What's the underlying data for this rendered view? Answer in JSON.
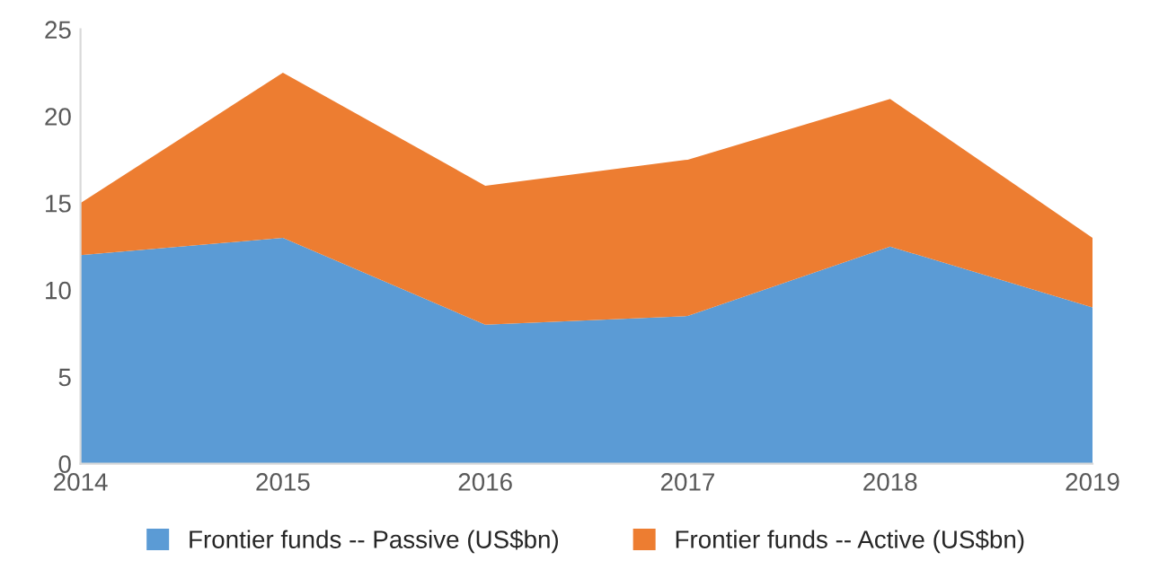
{
  "chart_data": {
    "type": "area",
    "stacked": true,
    "x": [
      2014,
      2015,
      2016,
      2017,
      2018,
      2019
    ],
    "xlim": [
      2014,
      2019
    ],
    "xticks": [
      2014,
      2015,
      2016,
      2017,
      2018,
      2019
    ],
    "ylim": [
      0,
      25
    ],
    "yticks": [
      0,
      5,
      10,
      15,
      20,
      25
    ],
    "grid": false,
    "legend": "bottom",
    "series": [
      {
        "name": "Frontier funds -- Passive (US$bn)",
        "color": "#5b9bd5",
        "values": [
          12,
          13,
          8,
          8.5,
          12.5,
          9
        ]
      },
      {
        "name": "Frontier funds -- Active (US$bn)",
        "color": "#ed7d31",
        "values": [
          3,
          9.5,
          8,
          9,
          8.5,
          4
        ]
      }
    ]
  }
}
